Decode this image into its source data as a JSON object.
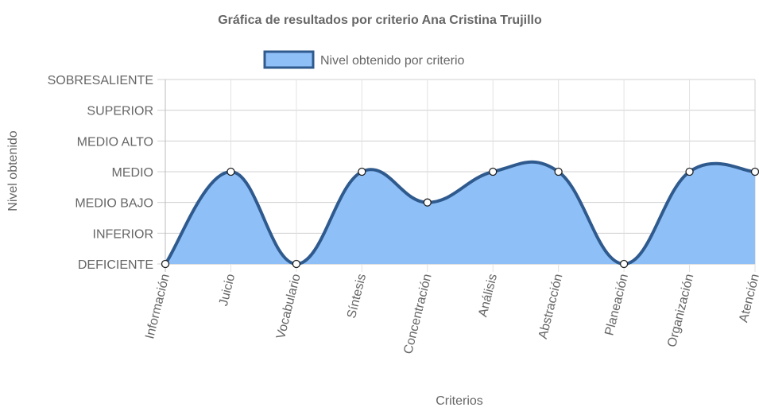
{
  "chart_data": {
    "type": "area",
    "title": "Gráfica de resultados por criterio Ana Cristina Trujillo",
    "xlabel": "Criterios",
    "ylabel": "Nivel obtenido",
    "categories": [
      "Información",
      "Juicio",
      "Vocabulario",
      "Síntesis",
      "Concentración",
      "Análisis",
      "Abstracción",
      "Planeación",
      "Organización",
      "Atención"
    ],
    "y_levels": [
      "DEFICIENTE",
      "INFERIOR",
      "MEDIO BAJO",
      "MEDIO",
      "MEDIO ALTO",
      "SUPERIOR",
      "SOBRESALIENTE"
    ],
    "series": [
      {
        "name": "Nivel obtenido por criterio",
        "values": [
          0,
          3,
          0,
          3,
          2,
          3,
          3,
          0,
          3,
          3
        ]
      }
    ],
    "ylim": [
      0,
      6
    ],
    "grid": true,
    "legend_position": "top-center",
    "colors": {
      "fill": "#8fbff7",
      "line": "#2f5a8e",
      "point_fill": "#ffffff",
      "point_stroke": "#222222",
      "grid": "#e2e2e2",
      "axis": "#bbbbbb"
    }
  }
}
